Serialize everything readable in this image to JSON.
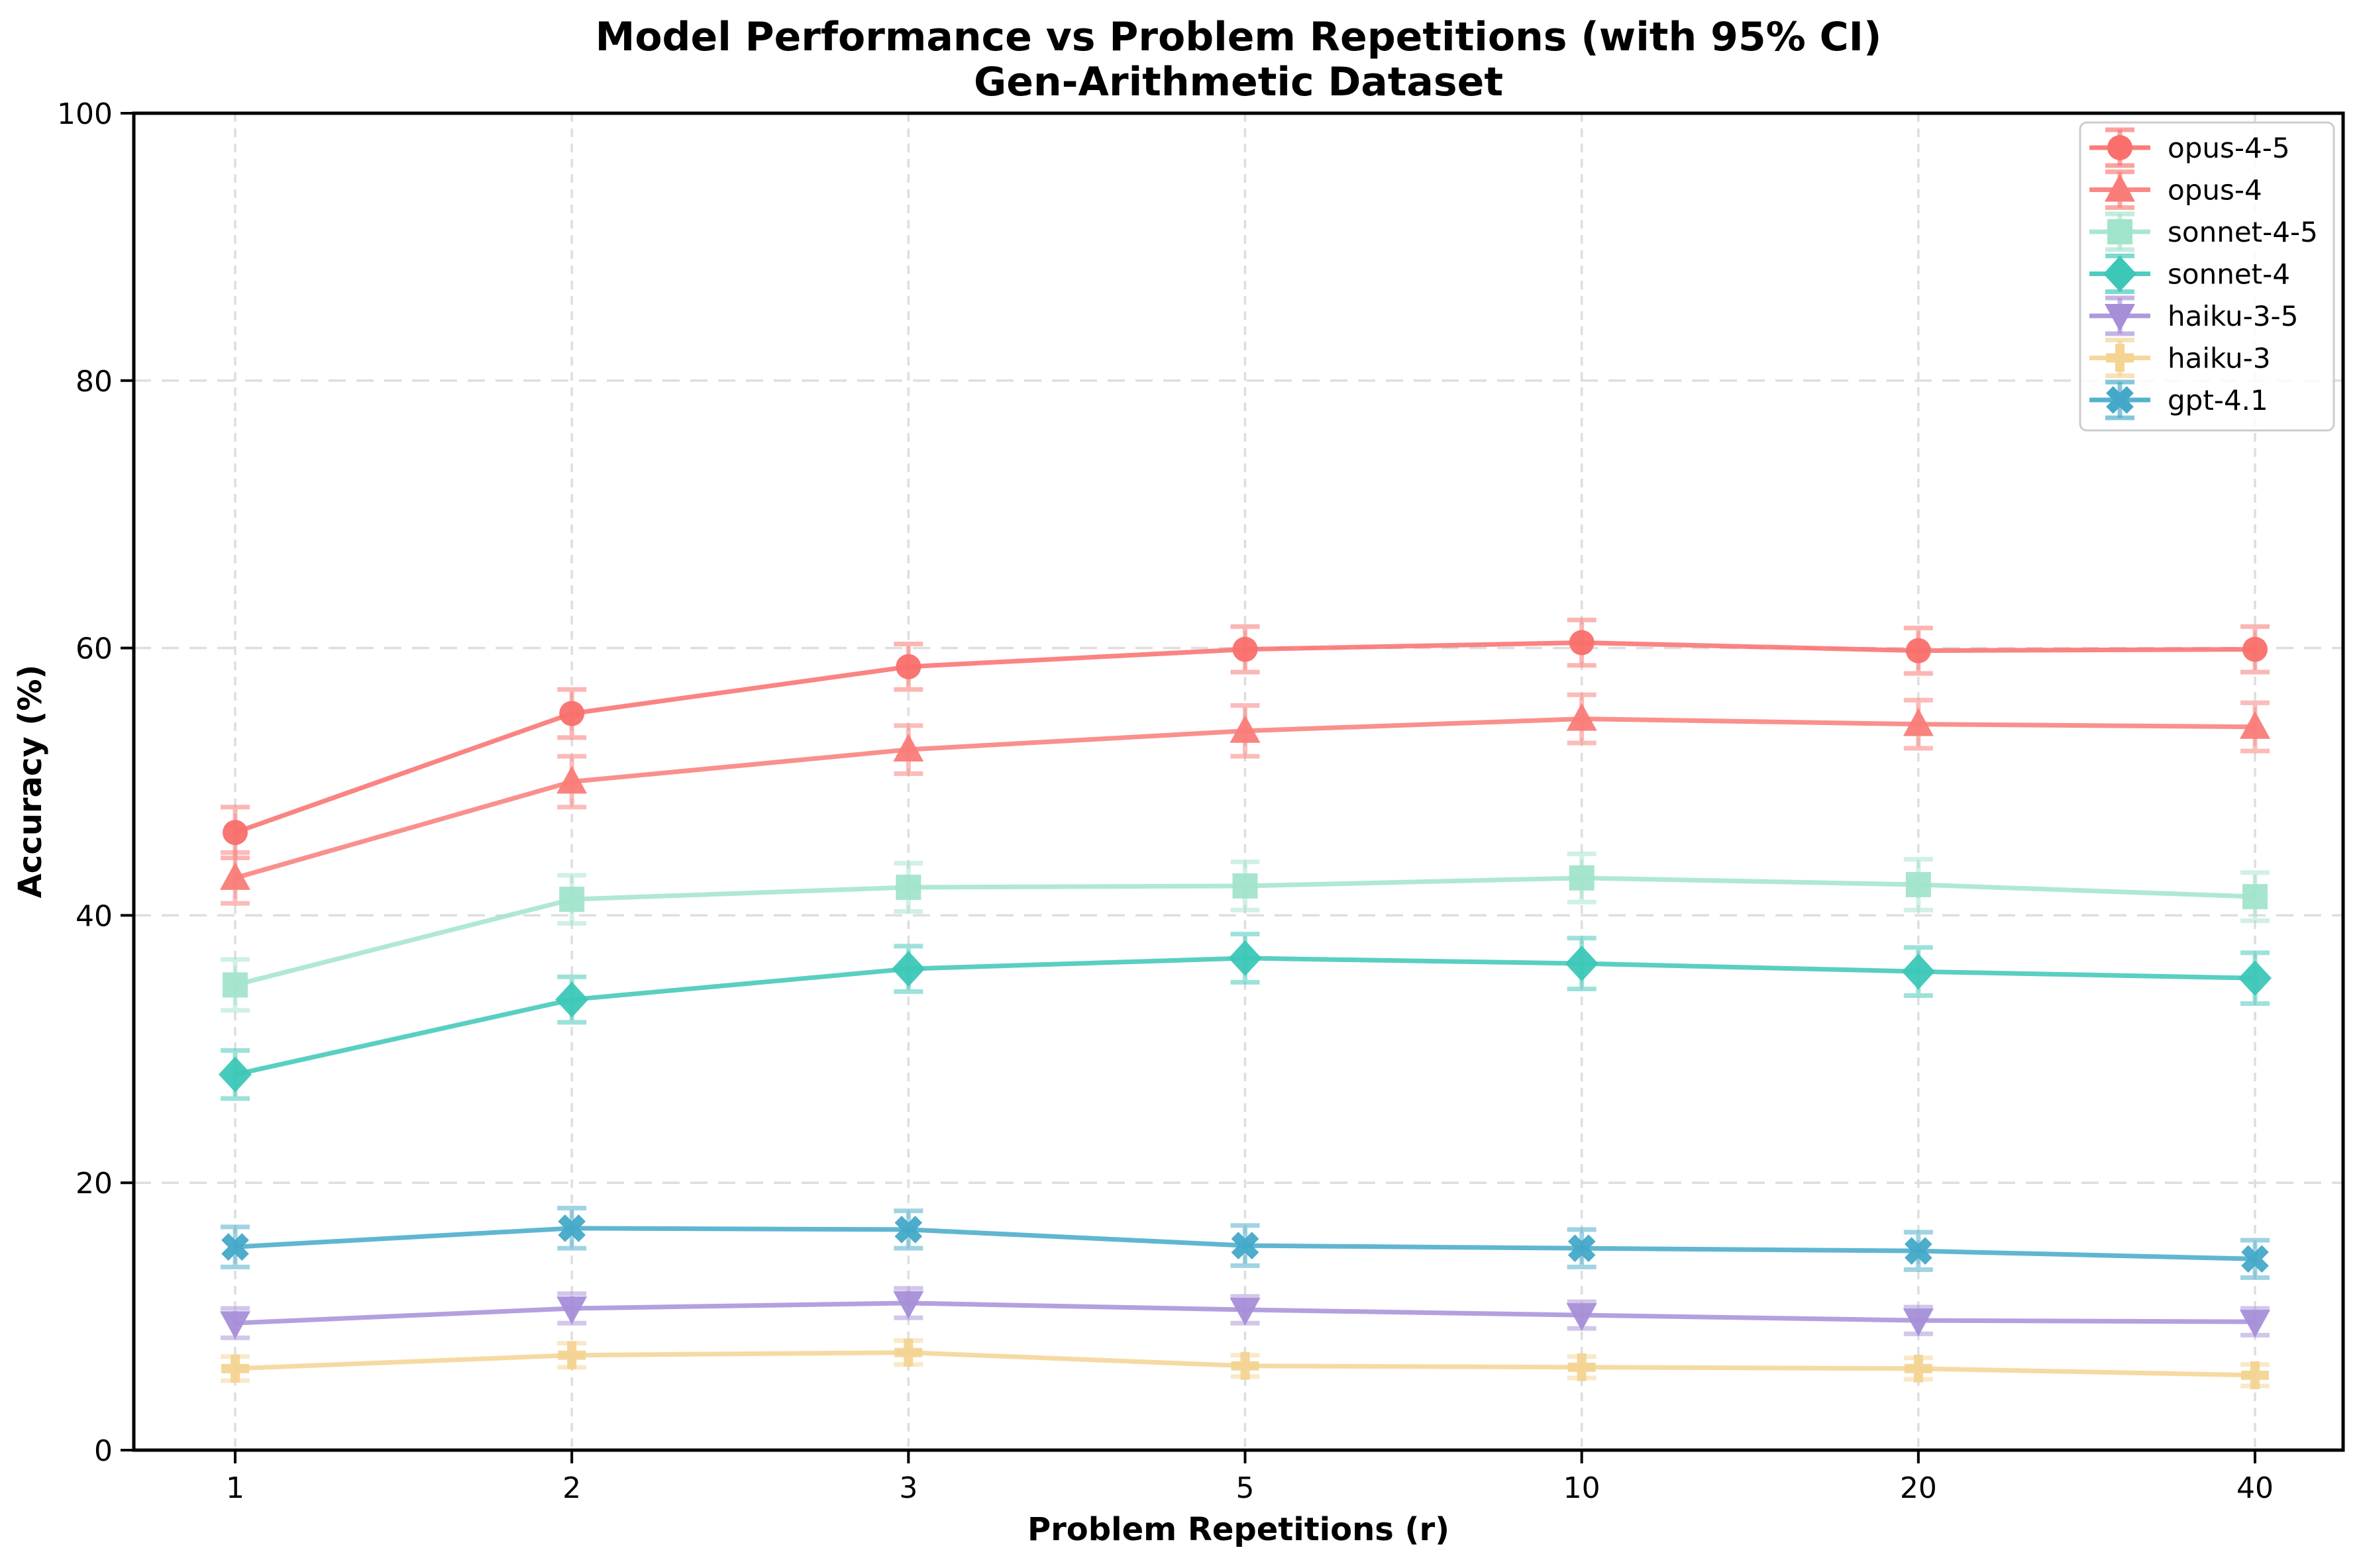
{
  "title": {
    "line1": "Model Performance vs Problem Repetitions (with 95% CI)",
    "line2": "Gen-Arithmetic Dataset"
  },
  "axes": {
    "x_label": "Problem Repetitions (r)",
    "y_label": "Accuracy (%)",
    "x_tick_labels": [
      "1",
      "2",
      "3",
      "5",
      "10",
      "20",
      "40"
    ],
    "y_tick_labels": [
      "0",
      "20",
      "40",
      "60",
      "80",
      "100"
    ]
  },
  "colors": {
    "grid": "#dedede",
    "spine": "#000000",
    "legend_border": "#cccccc"
  },
  "chart_data": {
    "type": "line",
    "title": "Model Performance vs Problem Repetitions (with 95% CI)",
    "subtitle": "Gen-Arithmetic Dataset",
    "xlabel": "Problem Repetitions (r)",
    "ylabel": "Accuracy (%)",
    "x": [
      1,
      2,
      3,
      5,
      10,
      20,
      40
    ],
    "x_scale": "categorical-equal-spacing",
    "ylim": [
      0,
      100
    ],
    "y_ticks": [
      0,
      20,
      40,
      60,
      80,
      100
    ],
    "grid": true,
    "error_bars": "95% CI",
    "legend_position": "upper right",
    "series": [
      {
        "name": "opus-4-5",
        "color": "#f96f6c",
        "marker": "circle",
        "values": [
          46.2,
          55.1,
          58.6,
          59.9,
          60.4,
          59.8,
          59.9
        ],
        "errors": [
          1.9,
          1.8,
          1.7,
          1.7,
          1.7,
          1.7,
          1.7
        ]
      },
      {
        "name": "opus-4",
        "color": "#f97c78",
        "marker": "triangle-up",
        "values": [
          42.8,
          50.0,
          52.4,
          53.8,
          54.7,
          54.3,
          54.1
        ],
        "errors": [
          1.9,
          1.9,
          1.8,
          1.9,
          1.8,
          1.8,
          1.8
        ]
      },
      {
        "name": "sonnet-4-5",
        "color": "#a2e4cb",
        "marker": "square",
        "values": [
          34.8,
          41.2,
          42.1,
          42.2,
          42.8,
          42.3,
          41.4
        ],
        "errors": [
          1.9,
          1.8,
          1.8,
          1.8,
          1.8,
          1.9,
          1.8
        ]
      },
      {
        "name": "sonnet-4",
        "color": "#3cc7b7",
        "marker": "diamond",
        "values": [
          28.1,
          33.7,
          36.0,
          36.8,
          36.4,
          35.8,
          35.3
        ],
        "errors": [
          1.8,
          1.7,
          1.7,
          1.8,
          1.9,
          1.8,
          1.9
        ]
      },
      {
        "name": "haiku-3-5",
        "color": "#a78fd8",
        "marker": "triangle-down",
        "values": [
          9.5,
          10.6,
          11.0,
          10.5,
          10.1,
          9.7,
          9.6
        ],
        "errors": [
          1.1,
          1.1,
          1.1,
          1.0,
          1.0,
          1.0,
          1.0
        ]
      },
      {
        "name": "haiku-3",
        "color": "#f4d493",
        "marker": "plus",
        "values": [
          6.1,
          7.1,
          7.3,
          6.3,
          6.2,
          6.1,
          5.6
        ],
        "errors": [
          0.9,
          0.9,
          0.9,
          0.8,
          0.8,
          0.8,
          0.8
        ]
      },
      {
        "name": "gpt-4.1",
        "color": "#44a9c9",
        "marker": "x",
        "values": [
          15.2,
          16.6,
          16.5,
          15.3,
          15.1,
          14.9,
          14.3
        ],
        "errors": [
          1.5,
          1.5,
          1.4,
          1.5,
          1.4,
          1.4,
          1.4
        ]
      }
    ]
  }
}
